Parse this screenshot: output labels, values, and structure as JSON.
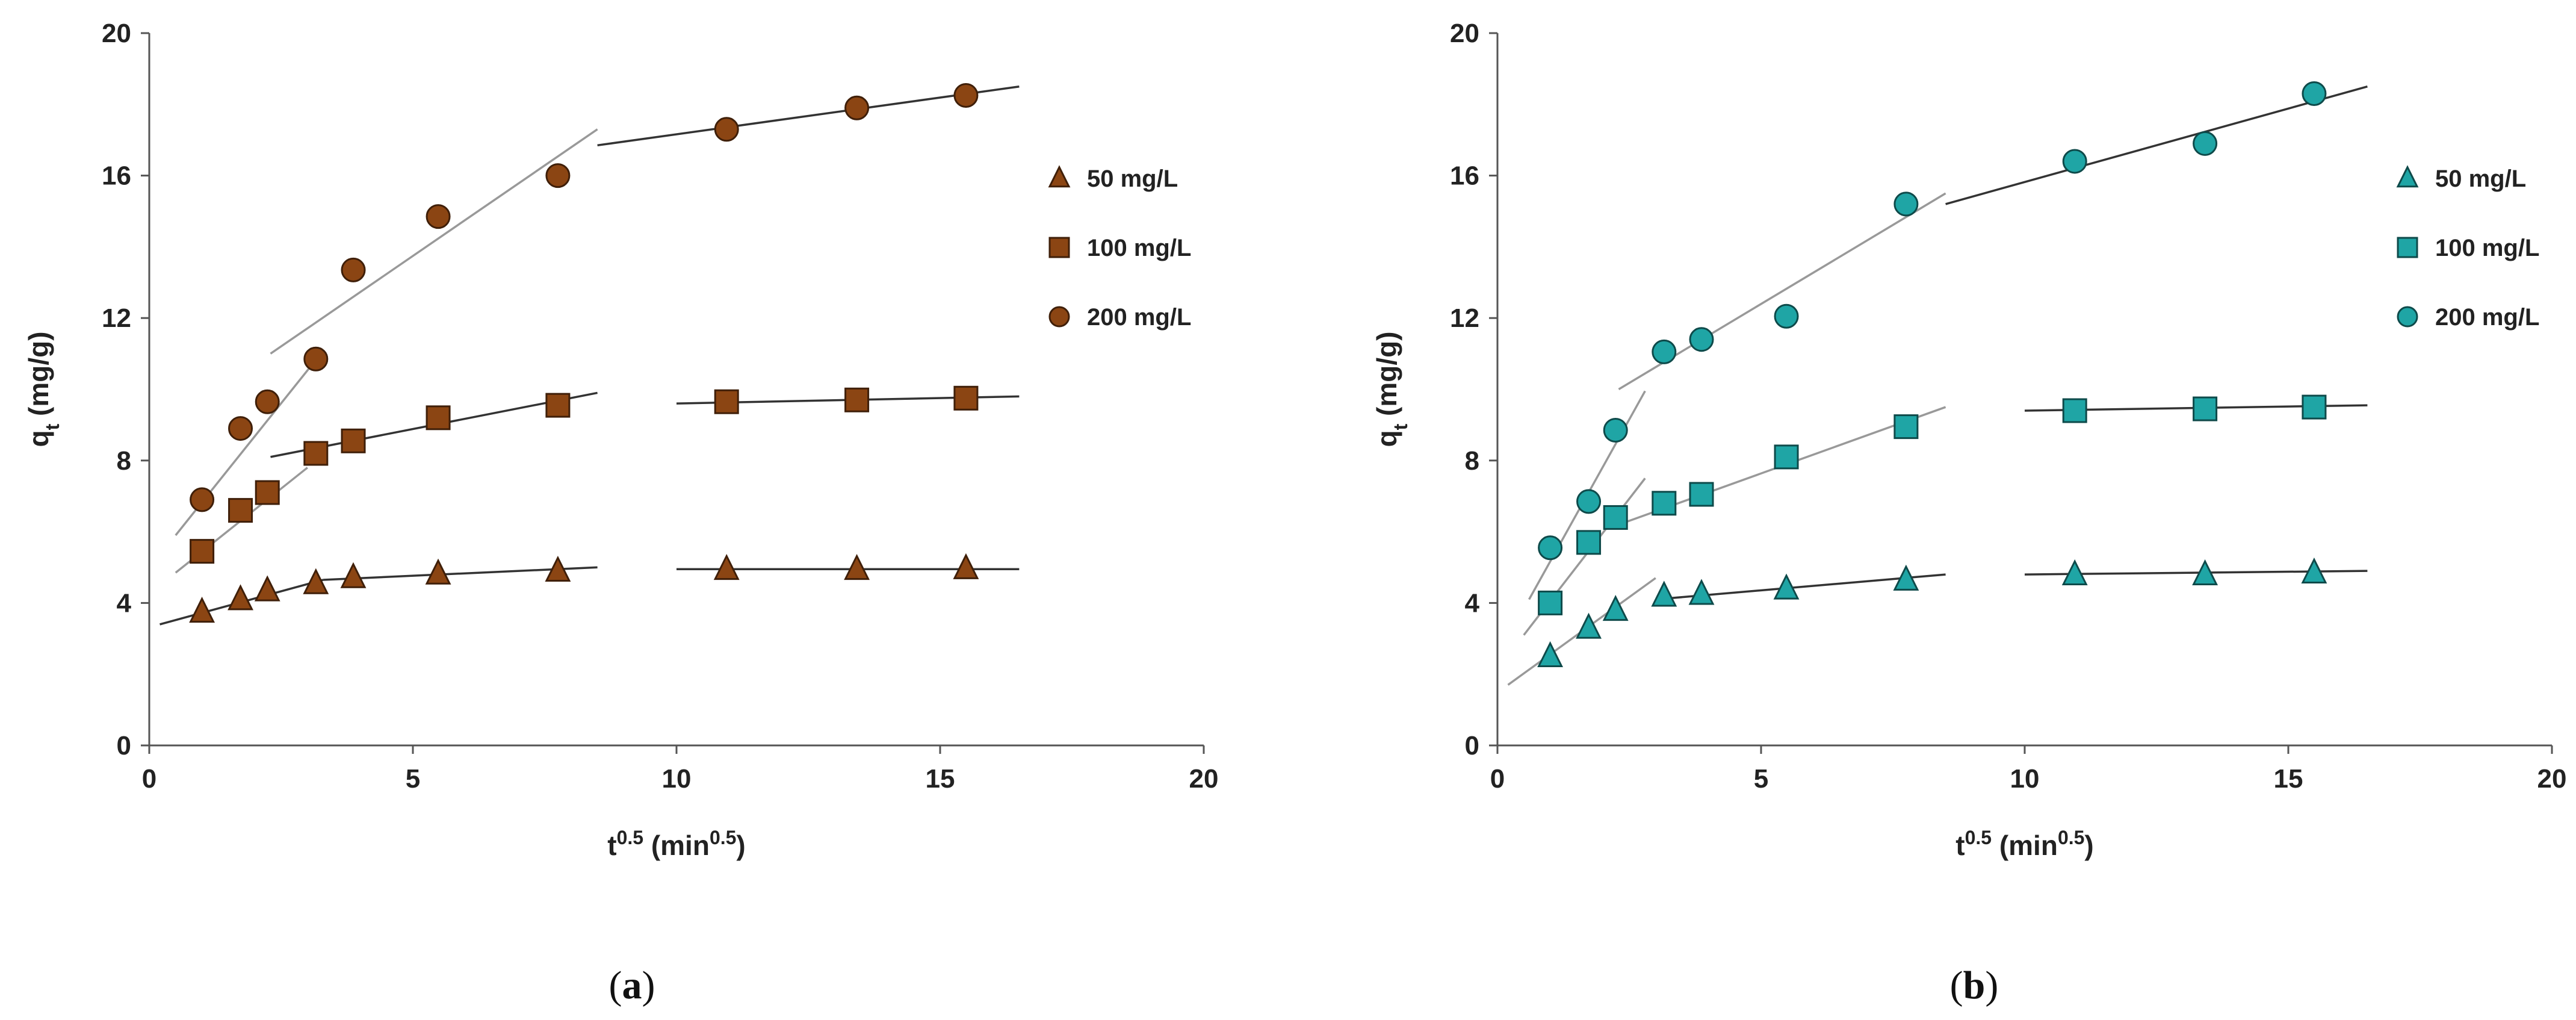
{
  "chart_data": [
    {
      "type": "scatter",
      "panel_label": "a",
      "caption": [
        "(",
        "a",
        ")"
      ],
      "title": "",
      "xlabel": {
        "base": "t",
        "sup": "0.5",
        "unit_open": " (min",
        "unit_sup": "0.5",
        "unit_close": ")"
      },
      "ylabel": {
        "base": "q",
        "sub": "t",
        "unit": " (mg/g)"
      },
      "xlim": [
        0,
        20
      ],
      "ylim": [
        0,
        20
      ],
      "xticks": [
        0,
        5,
        10,
        15,
        20
      ],
      "yticks": [
        0,
        4,
        8,
        12,
        16,
        20
      ],
      "xtick_labels": [
        "0",
        "5",
        "10",
        "15",
        "20"
      ],
      "ytick_labels": [
        "0",
        "4",
        "8",
        "12",
        "16",
        "20"
      ],
      "grid": false,
      "legend_position": "right",
      "marker_color": "#8B4513",
      "series": [
        {
          "name": "50 mg/L",
          "marker": "triangle",
          "x": [
            1.0,
            1.73,
            2.24,
            3.16,
            3.87,
            5.48,
            7.75,
            10.95,
            13.42,
            15.49
          ],
          "y": [
            3.75,
            4.1,
            4.35,
            4.55,
            4.72,
            4.82,
            4.9,
            4.95,
            4.95,
            4.97
          ]
        },
        {
          "name": "100 mg/L",
          "marker": "square",
          "x": [
            1.0,
            1.73,
            2.24,
            3.16,
            3.87,
            5.48,
            7.75,
            10.95,
            13.42,
            15.49
          ],
          "y": [
            5.45,
            6.6,
            7.1,
            8.2,
            8.55,
            9.2,
            9.55,
            9.65,
            9.7,
            9.75
          ]
        },
        {
          "name": "200 mg/L",
          "marker": "circle",
          "x": [
            1.0,
            1.73,
            2.24,
            3.16,
            3.87,
            5.48,
            7.75,
            10.95,
            13.42,
            15.49
          ],
          "y": [
            6.9,
            8.9,
            9.65,
            10.85,
            13.35,
            14.85,
            16.0,
            17.3,
            17.9,
            18.25
          ]
        }
      ],
      "fit_lines": [
        {
          "x": [
            0.5,
            3.2
          ],
          "y": [
            5.9,
            10.9
          ],
          "color": "#999999"
        },
        {
          "x": [
            2.3,
            8.5
          ],
          "y": [
            11.0,
            17.3
          ],
          "color": "#999999"
        },
        {
          "x": [
            8.5,
            16.5
          ],
          "y": [
            16.85,
            18.5
          ],
          "color": "#333333"
        },
        {
          "x": [
            0.5,
            3.0
          ],
          "y": [
            4.85,
            7.8
          ],
          "color": "#999999"
        },
        {
          "x": [
            2.3,
            8.5
          ],
          "y": [
            8.1,
            9.9
          ],
          "color": "#333333"
        },
        {
          "x": [
            10.0,
            16.5
          ],
          "y": [
            9.6,
            9.8
          ],
          "color": "#333333"
        },
        {
          "x": [
            0.2,
            3.3
          ],
          "y": [
            3.4,
            4.65
          ],
          "color": "#333333"
        },
        {
          "x": [
            3.3,
            8.5
          ],
          "y": [
            4.65,
            5.0
          ],
          "color": "#333333"
        },
        {
          "x": [
            10.0,
            16.5
          ],
          "y": [
            4.95,
            4.95
          ],
          "color": "#333333"
        }
      ]
    },
    {
      "type": "scatter",
      "panel_label": "b",
      "caption": [
        "(",
        "b",
        ")"
      ],
      "title": "",
      "xlabel": {
        "base": "t",
        "sup": "0.5",
        "unit_open": " (min",
        "unit_sup": "0.5",
        "unit_close": ")"
      },
      "ylabel": {
        "base": "q",
        "sub": "t",
        "unit": " (mg/g)"
      },
      "xlim": [
        0,
        20
      ],
      "ylim": [
        0,
        20
      ],
      "xticks": [
        0,
        5,
        10,
        15,
        20
      ],
      "yticks": [
        0,
        4,
        8,
        12,
        16,
        20
      ],
      "xtick_labels": [
        "0",
        "5",
        "10",
        "15",
        "20"
      ],
      "ytick_labels": [
        "0",
        "4",
        "8",
        "12",
        "16",
        "20"
      ],
      "grid": false,
      "legend_position": "right",
      "marker_color": "#1FA5A5",
      "series": [
        {
          "name": "50 mg/L",
          "marker": "triangle",
          "x": [
            1.0,
            1.73,
            2.24,
            3.16,
            3.87,
            5.48,
            7.75,
            10.95,
            13.42,
            15.49
          ],
          "y": [
            2.5,
            3.3,
            3.8,
            4.2,
            4.25,
            4.4,
            4.65,
            4.8,
            4.8,
            4.85
          ]
        },
        {
          "name": "100 mg/L",
          "marker": "square",
          "x": [
            1.0,
            1.73,
            2.24,
            3.16,
            3.87,
            5.48,
            7.75,
            10.95,
            13.42,
            15.49
          ],
          "y": [
            4.0,
            5.7,
            6.4,
            6.8,
            7.05,
            8.1,
            8.95,
            9.4,
            9.45,
            9.5
          ]
        },
        {
          "name": "200 mg/L",
          "marker": "circle",
          "x": [
            1.0,
            1.73,
            2.24,
            3.16,
            3.87,
            5.48,
            7.75,
            10.95,
            13.42,
            15.49
          ],
          "y": [
            5.55,
            6.85,
            8.85,
            11.05,
            11.4,
            12.05,
            15.2,
            16.4,
            16.9,
            18.3
          ]
        }
      ],
      "fit_lines": [
        {
          "x": [
            0.6,
            2.8
          ],
          "y": [
            4.1,
            9.95
          ],
          "color": "#999999"
        },
        {
          "x": [
            2.3,
            8.5
          ],
          "y": [
            10.0,
            15.5
          ],
          "color": "#999999"
        },
        {
          "x": [
            8.5,
            16.5
          ],
          "y": [
            15.2,
            18.5
          ],
          "color": "#333333"
        },
        {
          "x": [
            0.5,
            2.8
          ],
          "y": [
            3.1,
            7.5
          ],
          "color": "#999999"
        },
        {
          "x": [
            2.3,
            8.5
          ],
          "y": [
            6.2,
            9.5
          ],
          "color": "#999999"
        },
        {
          "x": [
            10.0,
            16.5
          ],
          "y": [
            9.4,
            9.55
          ],
          "color": "#333333"
        },
        {
          "x": [
            0.2,
            3.0
          ],
          "y": [
            1.7,
            4.7
          ],
          "color": "#999999"
        },
        {
          "x": [
            3.0,
            8.5
          ],
          "y": [
            4.1,
            4.8
          ],
          "color": "#333333"
        },
        {
          "x": [
            10.0,
            16.5
          ],
          "y": [
            4.8,
            4.9
          ],
          "color": "#333333"
        }
      ]
    }
  ]
}
